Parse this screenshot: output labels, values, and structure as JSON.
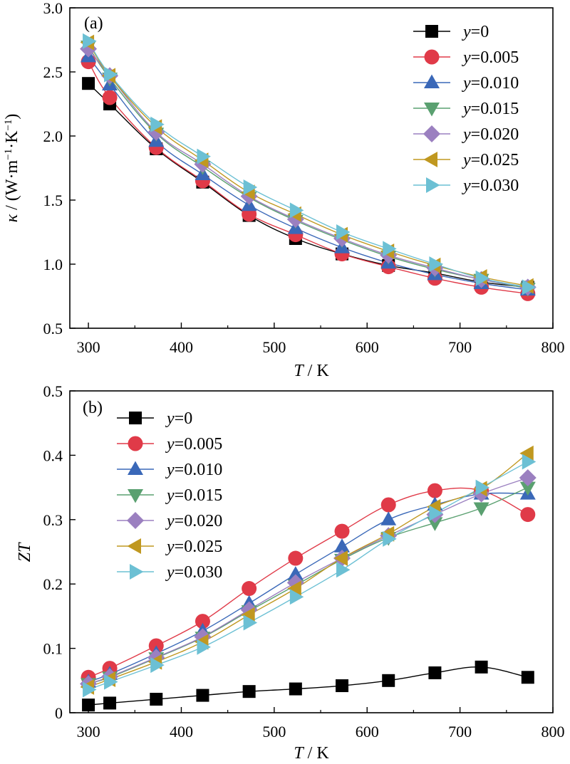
{
  "chart_data": [
    {
      "id": "a",
      "type": "line",
      "panel_label": "(a)",
      "xlabel": {
        "symbol": "T",
        "unit": " / K"
      },
      "ylabel": {
        "symbol": "κ",
        "unit": " / (W·m",
        "sup1": "−1",
        "mid": "·K",
        "sup2": "−1",
        "close": ")"
      },
      "xlim": [
        280,
        800
      ],
      "ylim": [
        0.5,
        3.0
      ],
      "xticks": [
        300,
        400,
        500,
        600,
        700,
        800
      ],
      "yticks": [
        0.5,
        1.0,
        1.5,
        2.0,
        2.5,
        3.0
      ],
      "ytick_decimals": 1,
      "legend_position": "top-right",
      "x": [
        300,
        323,
        373,
        423,
        473,
        523,
        573,
        623,
        673,
        723,
        773
      ],
      "series": [
        {
          "name": "y=0",
          "label_var": "y",
          "label_val": "=0",
          "marker": "square",
          "color": "#000000",
          "line_color": "#000000",
          "values": [
            2.41,
            2.25,
            1.9,
            1.64,
            1.38,
            1.2,
            1.08,
            0.99,
            0.93,
            0.86,
            0.82
          ]
        },
        {
          "name": "y=0.005",
          "label_var": "y",
          "label_val": "=0.005",
          "marker": "circle",
          "color": "#e03a48",
          "line_color": "#e03a48",
          "values": [
            2.58,
            2.3,
            1.91,
            1.65,
            1.39,
            1.23,
            1.08,
            0.98,
            0.89,
            0.82,
            0.77
          ]
        },
        {
          "name": "y=0.010",
          "label_var": "y",
          "label_val": "=0.010",
          "marker": "triangle-up",
          "color": "#3a68b8",
          "line_color": "#3a68b8",
          "values": [
            2.62,
            2.4,
            1.96,
            1.7,
            1.46,
            1.28,
            1.13,
            1.01,
            0.92,
            0.85,
            0.8
          ]
        },
        {
          "name": "y=0.015",
          "label_var": "y",
          "label_val": "=0.015",
          "marker": "triangle-down",
          "color": "#5aa070",
          "line_color": "#5aa070",
          "values": [
            2.7,
            2.45,
            2.02,
            1.76,
            1.52,
            1.34,
            1.19,
            1.06,
            0.96,
            0.88,
            0.81
          ]
        },
        {
          "name": "y=0.020",
          "label_var": "y",
          "label_val": "=0.020",
          "marker": "diamond",
          "color": "#9b80c0",
          "line_color": "#9b80c0",
          "values": [
            2.68,
            2.47,
            2.03,
            1.78,
            1.53,
            1.35,
            1.2,
            1.07,
            0.97,
            0.88,
            0.82
          ]
        },
        {
          "name": "y=0.025",
          "label_var": "y",
          "label_val": "=0.025",
          "marker": "triangle-left",
          "color": "#c09820",
          "line_color": "#c09820",
          "values": [
            2.73,
            2.47,
            2.07,
            1.81,
            1.56,
            1.39,
            1.23,
            1.1,
            0.99,
            0.9,
            0.83
          ]
        },
        {
          "name": "y=0.030",
          "label_var": "y",
          "label_val": "=0.030",
          "marker": "triangle-right",
          "color": "#6cc0d4",
          "line_color": "#6cc0d4",
          "values": [
            2.74,
            2.48,
            2.09,
            1.84,
            1.6,
            1.42,
            1.25,
            1.12,
            1.0,
            0.89,
            0.82
          ]
        }
      ]
    },
    {
      "id": "b",
      "type": "line",
      "panel_label": "(b)",
      "xlabel": {
        "symbol": "T",
        "unit": " / K"
      },
      "ylabel": {
        "symbol": "ZT"
      },
      "xlim": [
        280,
        800
      ],
      "ylim": [
        0,
        0.5
      ],
      "xticks": [
        300,
        400,
        500,
        600,
        700,
        800
      ],
      "yticks": [
        0,
        0.1,
        0.2,
        0.3,
        0.4,
        0.5
      ],
      "ytick_decimals": 1,
      "legend_position": "top-left",
      "x": [
        300,
        323,
        373,
        423,
        473,
        523,
        573,
        623,
        673,
        723,
        773
      ],
      "series": [
        {
          "name": "y=0",
          "label_var": "y",
          "label_val": "=0",
          "marker": "square",
          "color": "#000000",
          "line_color": "#000000",
          "values": [
            0.012,
            0.015,
            0.021,
            0.027,
            0.033,
            0.037,
            0.042,
            0.05,
            0.062,
            0.071,
            0.055
          ]
        },
        {
          "name": "y=0.005",
          "label_var": "y",
          "label_val": "=0.005",
          "marker": "circle",
          "color": "#e03a48",
          "line_color": "#e03a48",
          "values": [
            0.055,
            0.069,
            0.104,
            0.142,
            0.193,
            0.24,
            0.282,
            0.323,
            0.345,
            0.345,
            0.308
          ]
        },
        {
          "name": "y=0.010",
          "label_var": "y",
          "label_val": "=0.010",
          "marker": "triangle-up",
          "color": "#3a68b8",
          "line_color": "#3a68b8",
          "values": [
            0.048,
            0.06,
            0.092,
            0.127,
            0.17,
            0.215,
            0.258,
            0.3,
            0.323,
            0.34,
            0.34
          ]
        },
        {
          "name": "y=0.015",
          "label_var": "y",
          "label_val": "=0.015",
          "marker": "triangle-down",
          "color": "#5aa070",
          "line_color": "#5aa070",
          "values": [
            0.045,
            0.055,
            0.085,
            0.117,
            0.158,
            0.198,
            0.238,
            0.272,
            0.295,
            0.318,
            0.35
          ]
        },
        {
          "name": "y=0.020",
          "label_var": "y",
          "label_val": "=0.020",
          "marker": "diamond",
          "color": "#9b80c0",
          "line_color": "#9b80c0",
          "values": [
            0.045,
            0.056,
            0.086,
            0.118,
            0.16,
            0.202,
            0.24,
            0.275,
            0.308,
            0.34,
            0.365
          ]
        },
        {
          "name": "y=0.025",
          "label_var": "y",
          "label_val": "=0.025",
          "marker": "triangle-left",
          "color": "#c09820",
          "line_color": "#c09820",
          "values": [
            0.04,
            0.052,
            0.079,
            0.11,
            0.152,
            0.193,
            0.24,
            0.278,
            0.32,
            0.348,
            0.403
          ]
        },
        {
          "name": "y=0.030",
          "label_var": "y",
          "label_val": "=0.030",
          "marker": "triangle-right",
          "color": "#6cc0d4",
          "line_color": "#6cc0d4",
          "values": [
            0.036,
            0.048,
            0.074,
            0.102,
            0.14,
            0.18,
            0.222,
            0.27,
            0.31,
            0.35,
            0.39
          ]
        }
      ]
    }
  ]
}
